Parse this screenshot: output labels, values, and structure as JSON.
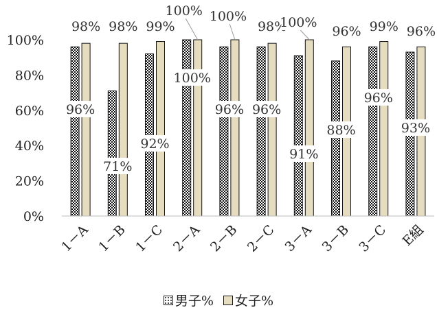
{
  "chart_data": {
    "type": "bar",
    "title": "",
    "xlabel": "",
    "ylabel": "",
    "ylim": [
      0,
      100
    ],
    "yticks": [
      "0%",
      "20%",
      "40%",
      "60%",
      "80%",
      "100%"
    ],
    "categories": [
      "1－A",
      "1－B",
      "1－C",
      "2－A",
      "2－B",
      "2－C",
      "3－A",
      "3－B",
      "3－C",
      "E組"
    ],
    "series": [
      {
        "name": "男子%",
        "values": [
          96,
          71,
          92,
          100,
          96,
          96,
          91,
          88,
          96,
          93
        ],
        "labels": [
          "96%",
          "71%",
          "92%",
          "100%",
          "96%",
          "96%",
          "91%",
          "88%",
          "96%",
          "93%"
        ],
        "fill": "#ffffff",
        "pattern": "dots"
      },
      {
        "name": "女子%",
        "values": [
          98,
          98,
          99,
          100,
          100,
          98,
          100,
          96,
          99,
          96
        ],
        "labels": [
          "98%",
          "98%",
          "99%",
          "100%",
          "100%",
          "98%",
          "100%",
          "96%",
          "99%",
          "96%"
        ],
        "fill": "#e6dcc0"
      }
    ],
    "grid": false,
    "legend": "bottom"
  }
}
